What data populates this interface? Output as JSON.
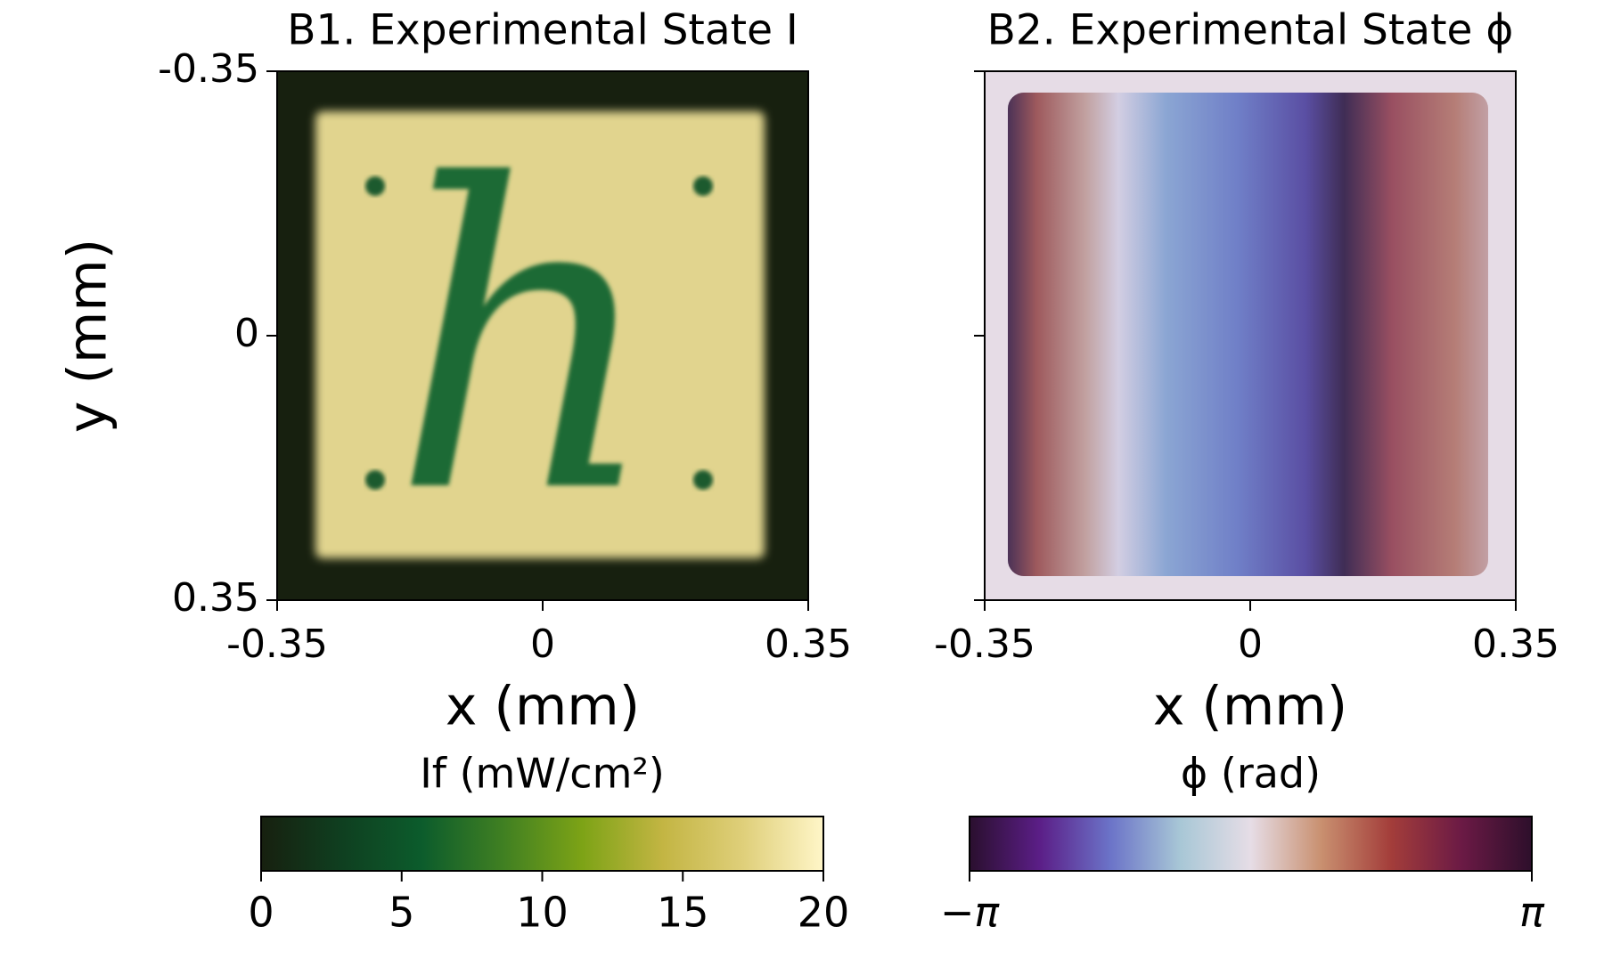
{
  "chart_data": [
    {
      "type": "image",
      "title": "B1. Experimental State I",
      "xlabel": "x (mm)",
      "ylabel": "y (mm)",
      "xlim": [
        -0.35,
        0.35
      ],
      "ylim": [
        -0.35,
        0.35
      ],
      "y_inverted": true,
      "xticks": [
        -0.35,
        0,
        0.35
      ],
      "yticks": [
        -0.35,
        0,
        0.35
      ],
      "ytick_labels": true,
      "colorbar": {
        "label": "If (mW/cm²)",
        "lim": [
          0,
          20
        ],
        "ticks": [
          0,
          5,
          10,
          15,
          20
        ],
        "colormap": [
          "#17200f",
          "#0f3f20",
          "#0c5c2c",
          "#3f7f22",
          "#7da316",
          "#c3b543",
          "#dfcf7a",
          "#fff6c8"
        ]
      }
    },
    {
      "type": "image",
      "title": "B2. Experimental State ϕ",
      "xlabel": "x (mm)",
      "xlim": [
        -0.35,
        0.35
      ],
      "ylim": [
        -0.35,
        0.35
      ],
      "y_inverted": true,
      "xticks": [
        -0.35,
        0,
        0.35
      ],
      "yticks": [
        -0.35,
        0,
        0.35
      ],
      "ytick_labels": false,
      "colorbar": {
        "label": "ϕ (rad)",
        "lim": [
          -3.141592653589793,
          3.141592653589793
        ],
        "ticks": [
          {
            "value": -3.141592653589793,
            "label": "−π"
          },
          {
            "value": 3.141592653589793,
            "label": "π"
          }
        ],
        "colormap": [
          "#2a0f2e",
          "#5b1e87",
          "#6b73c8",
          "#a8c7d6",
          "#e6dde6",
          "#c99070",
          "#a33d3a",
          "#6b1a45",
          "#2d0f2b"
        ]
      }
    }
  ]
}
